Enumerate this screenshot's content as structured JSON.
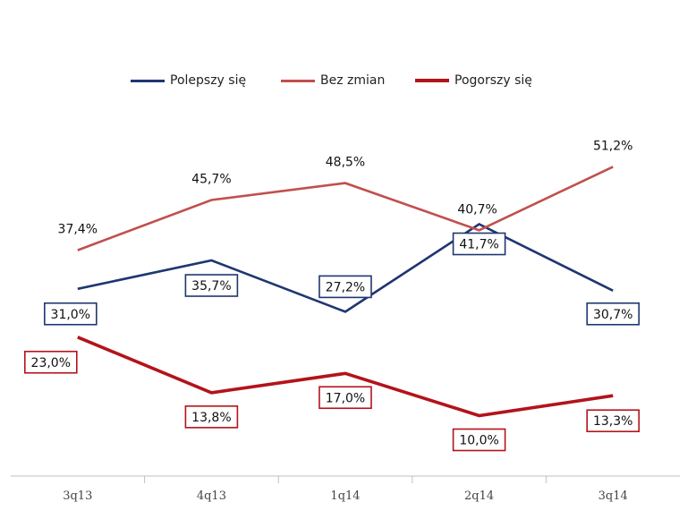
{
  "chart_data": {
    "type": "line",
    "title": "",
    "xlabel": "",
    "ylabel": "",
    "categories": [
      "3q13",
      "4q13",
      "1q14",
      "2q14",
      "3q14"
    ],
    "ylim": [
      0,
      70
    ],
    "grid": false,
    "legend_position": "top",
    "series": [
      {
        "name": "Polepszy się",
        "color": "#1f3670",
        "values": [
          31.0,
          35.7,
          27.2,
          41.7,
          30.7
        ],
        "labels": [
          "31,0%",
          "35,7%",
          "27,2%",
          "41,7%",
          "30,7%"
        ],
        "label_style": "boxed"
      },
      {
        "name": "Bez zmian",
        "color": "#c0504d",
        "values": [
          37.4,
          45.7,
          48.5,
          40.7,
          51.2
        ],
        "labels": [
          "37,4%",
          "45,7%",
          "48,5%",
          "40,7%",
          "51,2%"
        ],
        "label_style": "plain"
      },
      {
        "name": "Pogorszy się",
        "color": "#b3131b",
        "values": [
          23.0,
          13.8,
          17.0,
          10.0,
          13.3
        ],
        "labels": [
          "23,0%",
          "13,8%",
          "17,0%",
          "10,0%",
          "13,3%"
        ],
        "label_style": "boxed"
      }
    ]
  }
}
